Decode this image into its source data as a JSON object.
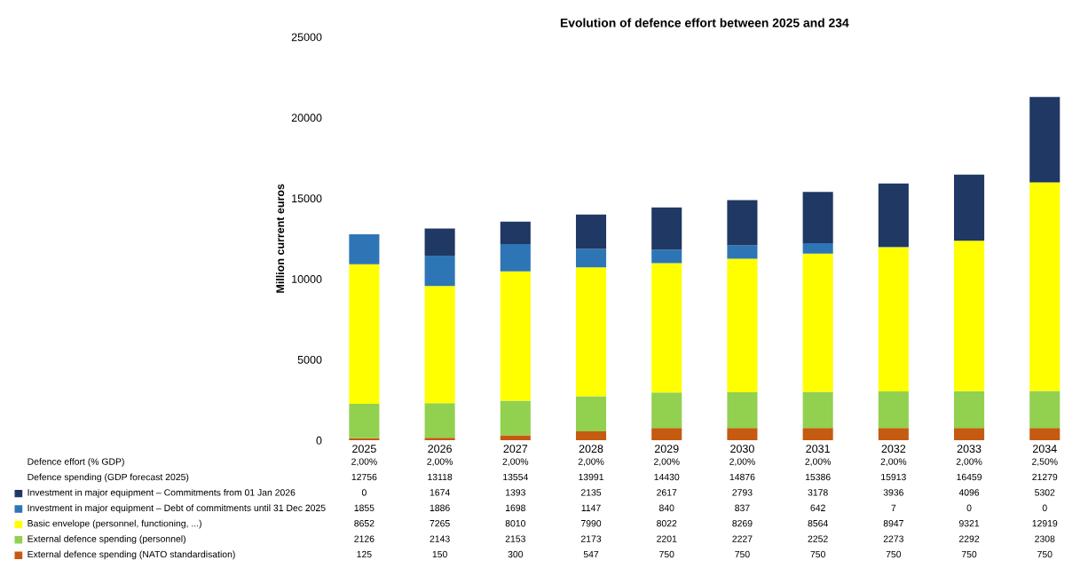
{
  "chart_data": {
    "type": "bar",
    "stacked": true,
    "title": "Evolution of defence effort between 2025 and 234",
    "ylabel": "Million current euros",
    "categories": [
      "2025",
      "2026",
      "2027",
      "2028",
      "2029",
      "2030",
      "2031",
      "2032",
      "2033",
      "2034"
    ],
    "series": [
      {
        "name": "External defence spending (NATO standardisation)",
        "color": "#c55a11",
        "values": [
          125,
          150,
          300,
          547,
          750,
          750,
          750,
          750,
          750,
          750
        ]
      },
      {
        "name": "External defence spending (personnel)",
        "color": "#92d050",
        "values": [
          2126,
          2143,
          2153,
          2173,
          2201,
          2227,
          2252,
          2273,
          2292,
          2308
        ]
      },
      {
        "name": "Basic envelope (personnel, functioning, ...)",
        "color": "#ffff00",
        "values": [
          8652,
          7265,
          8010,
          7990,
          8022,
          8269,
          8564,
          8947,
          9321,
          12919
        ]
      },
      {
        "name": "Investment in major equipment – Debt of commitments until 31 Dec 2025",
        "color": "#2e75b6",
        "values": [
          1855,
          1886,
          1698,
          1147,
          840,
          837,
          642,
          7,
          0,
          0
        ]
      },
      {
        "name": "Investment in major equipment – Commitments from 01 Jan 2026",
        "color": "#1f3864",
        "values": [
          0,
          1674,
          1393,
          2135,
          2617,
          2793,
          3178,
          3936,
          4096,
          5302
        ]
      }
    ],
    "annotations": [
      "Defence effort (% GDP)",
      "2,00%",
      "2,00%",
      "2,00%",
      "2,00%",
      "2,00%",
      "2,00%",
      "2,00%",
      "2,00%",
      "2,00%",
      "2,50%",
      "Defence spending (GDP forecast 2025)",
      "12756",
      "13118",
      "13554",
      "13991",
      "14430",
      "14876",
      "15386",
      "15913",
      "16459",
      "21279"
    ],
    "data_labels": true,
    "ylim": [
      0,
      25000
    ],
    "yticks": [
      0,
      5000,
      10000,
      15000,
      20000,
      25000
    ],
    "grid": false,
    "legend": "bottom"
  }
}
